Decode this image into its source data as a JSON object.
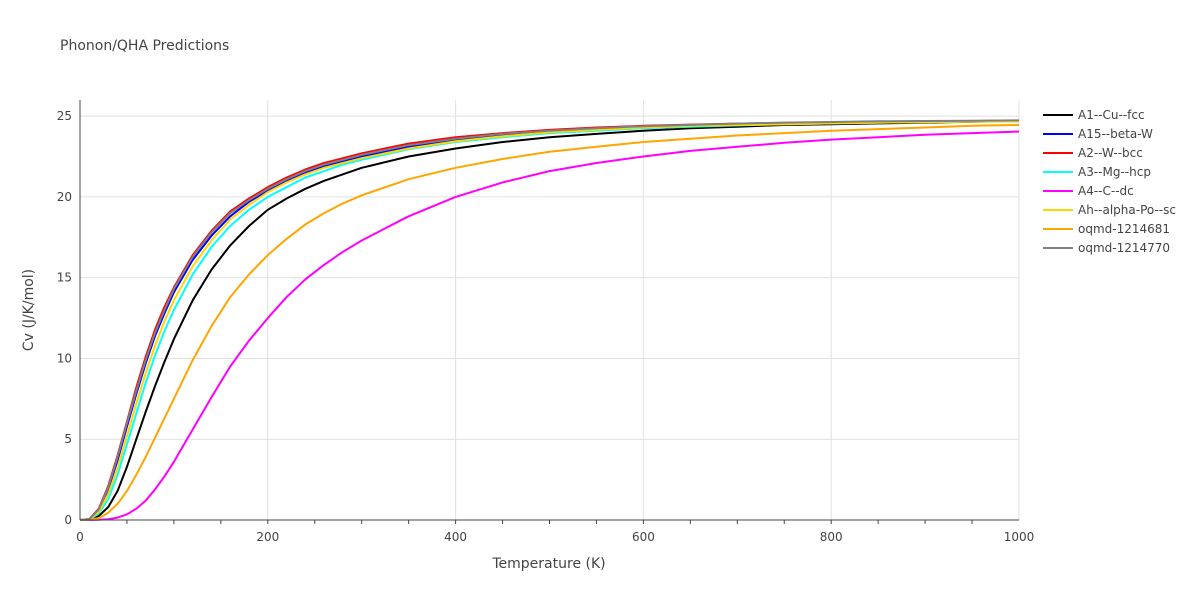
{
  "chart_data": {
    "type": "line",
    "title": "Phonon/QHA Predictions",
    "xlabel": "Temperature (K)",
    "ylabel": "Cv (J/K/mol)",
    "xlim": [
      0,
      1000
    ],
    "ylim": [
      0,
      26
    ],
    "xticks": [
      0,
      200,
      400,
      600,
      800,
      1000
    ],
    "yticks": [
      0,
      5,
      10,
      15,
      20,
      25
    ],
    "grid": true,
    "legend_position": "right",
    "x": [
      0,
      10,
      20,
      30,
      40,
      50,
      60,
      70,
      80,
      90,
      100,
      120,
      140,
      160,
      180,
      200,
      220,
      240,
      260,
      280,
      300,
      350,
      400,
      450,
      500,
      550,
      600,
      650,
      700,
      750,
      800,
      850,
      900,
      950,
      1000
    ],
    "series": [
      {
        "name": "A1--Cu--fcc",
        "color": "#000000",
        "values": [
          0,
          0.02,
          0.25,
          0.8,
          1.8,
          3.3,
          5.0,
          6.7,
          8.3,
          9.8,
          11.2,
          13.6,
          15.5,
          17.0,
          18.2,
          19.2,
          19.9,
          20.5,
          21.0,
          21.4,
          21.8,
          22.5,
          23.0,
          23.4,
          23.7,
          23.9,
          24.1,
          24.25,
          24.35,
          24.45,
          24.5,
          24.55,
          24.6,
          24.65,
          24.7
        ]
      },
      {
        "name": "A15--beta-W",
        "color": "#0000ff",
        "values": [
          0,
          0.05,
          0.6,
          1.9,
          3.7,
          5.8,
          7.8,
          9.7,
          11.4,
          12.8,
          14.1,
          16.1,
          17.6,
          18.8,
          19.7,
          20.4,
          21.0,
          21.5,
          21.9,
          22.2,
          22.5,
          23.1,
          23.5,
          23.8,
          24.0,
          24.15,
          24.3,
          24.4,
          24.45,
          24.5,
          24.55,
          24.6,
          24.63,
          24.66,
          24.7
        ]
      },
      {
        "name": "A2--W--bcc",
        "color": "#ff0000",
        "values": [
          0,
          0.06,
          0.7,
          2.1,
          4.0,
          6.1,
          8.2,
          10.1,
          11.8,
          13.2,
          14.4,
          16.4,
          17.9,
          19.1,
          19.9,
          20.6,
          21.2,
          21.7,
          22.1,
          22.4,
          22.7,
          23.3,
          23.7,
          23.95,
          24.15,
          24.3,
          24.4,
          24.48,
          24.54,
          24.58,
          24.62,
          24.65,
          24.68,
          24.7,
          24.72
        ]
      },
      {
        "name": "A3--Mg--hcp",
        "color": "#00ffff",
        "values": [
          0,
          0.03,
          0.4,
          1.3,
          2.8,
          4.7,
          6.6,
          8.5,
          10.2,
          11.7,
          13.0,
          15.2,
          16.9,
          18.2,
          19.2,
          20.0,
          20.6,
          21.2,
          21.6,
          22.0,
          22.3,
          22.95,
          23.4,
          23.7,
          23.95,
          24.1,
          24.25,
          24.35,
          24.43,
          24.5,
          24.55,
          24.6,
          24.63,
          24.66,
          24.68
        ]
      },
      {
        "name": "A4--C--dc",
        "color": "#ff00ff",
        "values": [
          0,
          0.0,
          0.01,
          0.05,
          0.15,
          0.35,
          0.7,
          1.2,
          1.9,
          2.7,
          3.6,
          5.6,
          7.6,
          9.5,
          11.1,
          12.5,
          13.8,
          14.9,
          15.8,
          16.6,
          17.3,
          18.8,
          20.0,
          20.9,
          21.6,
          22.1,
          22.5,
          22.85,
          23.1,
          23.35,
          23.55,
          23.7,
          23.85,
          23.95,
          24.05
        ]
      },
      {
        "name": "Ah--alpha-Po--sc",
        "color": "#ffd700",
        "values": [
          0,
          0.04,
          0.5,
          1.6,
          3.2,
          5.2,
          7.2,
          9.1,
          10.8,
          12.3,
          13.6,
          15.7,
          17.3,
          18.6,
          19.5,
          20.3,
          20.9,
          21.4,
          21.8,
          22.1,
          22.4,
          23.0,
          23.45,
          23.75,
          24.0,
          24.15,
          24.3,
          24.4,
          24.45,
          24.5,
          24.55,
          24.6,
          24.63,
          24.66,
          24.68
        ]
      },
      {
        "name": "oqmd-1214681",
        "color": "#ffa500",
        "values": [
          0,
          0.01,
          0.12,
          0.45,
          1.0,
          1.8,
          2.8,
          3.9,
          5.1,
          6.3,
          7.5,
          9.9,
          12.0,
          13.8,
          15.2,
          16.4,
          17.4,
          18.3,
          19.0,
          19.6,
          20.1,
          21.1,
          21.8,
          22.35,
          22.8,
          23.1,
          23.4,
          23.6,
          23.8,
          23.95,
          24.1,
          24.2,
          24.3,
          24.4,
          24.45
        ]
      },
      {
        "name": "oqmd-1214770",
        "color": "#808080",
        "values": [
          0,
          0.05,
          0.65,
          2.0,
          3.9,
          6.0,
          8.0,
          9.9,
          11.6,
          13.0,
          14.3,
          16.3,
          17.8,
          19.0,
          19.8,
          20.5,
          21.1,
          21.6,
          22.0,
          22.3,
          22.6,
          23.2,
          23.6,
          23.9,
          24.1,
          24.25,
          24.38,
          24.46,
          24.54,
          24.6,
          24.64,
          24.68,
          24.7,
          24.72,
          24.74
        ]
      }
    ]
  }
}
